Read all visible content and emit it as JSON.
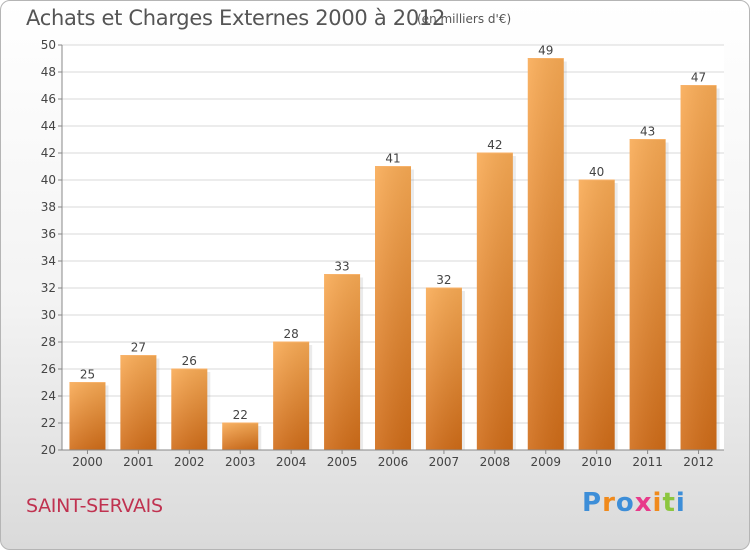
{
  "header": {
    "title": "Achats et Charges Externes 2000 à 2012",
    "subtitle": "(en milliers d'€)"
  },
  "footer": {
    "commune": "SAINT-SERVAIS",
    "logo": "Proxiti"
  },
  "colors": {
    "bar_light": "#f8a953",
    "bar_dark": "#d4711d",
    "text": "#444444",
    "commune": "#c03250",
    "logo_letters": [
      "#3d8ed8",
      "#f08a1c",
      "#3d8ed8",
      "#e83a8a",
      "#f08a1c",
      "#8cc63f",
      "#3d8ed8"
    ]
  },
  "chart_data": {
    "type": "bar",
    "categories": [
      "2000",
      "2001",
      "2002",
      "2003",
      "2004",
      "2005",
      "2006",
      "2007",
      "2008",
      "2009",
      "2010",
      "2011",
      "2012"
    ],
    "values": [
      25,
      27,
      26,
      22,
      28,
      33,
      41,
      32,
      42,
      49,
      40,
      43,
      47
    ],
    "ylim": [
      20,
      50
    ],
    "yticks": [
      20,
      22,
      24,
      26,
      28,
      30,
      32,
      34,
      36,
      38,
      40,
      42,
      44,
      46,
      48,
      50
    ],
    "grid": true,
    "data_labels": true
  }
}
